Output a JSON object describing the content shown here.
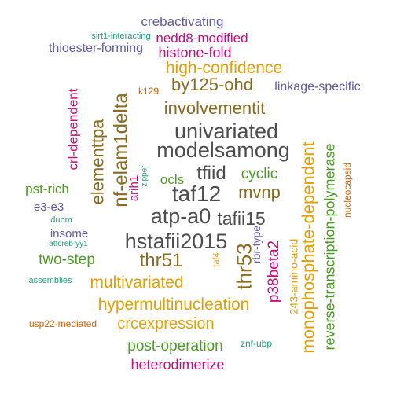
{
  "palette": {
    "slate": "#4d4d4d",
    "brown": "#8b6b1e",
    "orange": "#e69f00",
    "green": "#4b9b23",
    "magenta": "#cc0a7a",
    "purple": "#5e5aa6",
    "teal": "#1b9e77",
    "rust": "#d95f02"
  },
  "words": [
    {
      "text": "univariated",
      "color": "slate"
    },
    {
      "text": "modelsamong",
      "color": "slate"
    },
    {
      "text": "taf12",
      "color": "slate"
    },
    {
      "text": "tfiid",
      "color": "slate"
    },
    {
      "text": "atp-a0",
      "color": "slate"
    },
    {
      "text": "tafii15",
      "color": "slate"
    },
    {
      "text": "hstafii2015",
      "color": "slate"
    },
    {
      "text": "thr53",
      "color": "brown"
    },
    {
      "text": "thr51",
      "color": "brown"
    },
    {
      "text": "involvementit",
      "color": "brown"
    },
    {
      "text": "by125-ohd",
      "color": "brown"
    },
    {
      "text": "nf-elam1delta",
      "color": "brown"
    },
    {
      "text": "elementtpa",
      "color": "brown"
    },
    {
      "text": "mvnp",
      "color": "brown"
    },
    {
      "text": "monophosphate-dependent",
      "color": "orange"
    },
    {
      "text": "high-confidence",
      "color": "orange"
    },
    {
      "text": "multivariated",
      "color": "orange"
    },
    {
      "text": "hypermultinucleation",
      "color": "orange"
    },
    {
      "text": "crcexpression",
      "color": "orange"
    },
    {
      "text": "243-amino-acid",
      "color": "orange"
    },
    {
      "text": "taf4",
      "color": "orange"
    },
    {
      "text": "reverse-transcription-polymerase",
      "color": "green"
    },
    {
      "text": "cyclic",
      "color": "green"
    },
    {
      "text": "ocls",
      "color": "green"
    },
    {
      "text": "pst-rich",
      "color": "green"
    },
    {
      "text": "two-step",
      "color": "green"
    },
    {
      "text": "post-operation",
      "color": "green"
    },
    {
      "text": "p38beta2",
      "color": "magenta"
    },
    {
      "text": "nedd8-modified",
      "color": "magenta"
    },
    {
      "text": "histone-fold",
      "color": "magenta"
    },
    {
      "text": "crl-dependent",
      "color": "magenta"
    },
    {
      "text": "arih1",
      "color": "magenta"
    },
    {
      "text": "heterodimerize",
      "color": "magenta"
    },
    {
      "text": "crebactivating",
      "color": "purple"
    },
    {
      "text": "thioester-forming",
      "color": "purple"
    },
    {
      "text": "linkage-specific",
      "color": "purple"
    },
    {
      "text": "rbr-type",
      "color": "purple"
    },
    {
      "text": "e3-e3",
      "color": "purple"
    },
    {
      "text": "insome",
      "color": "purple"
    },
    {
      "text": "sirt1-interacting",
      "color": "teal"
    },
    {
      "text": "zipper",
      "color": "teal"
    },
    {
      "text": "dubm",
      "color": "teal"
    },
    {
      "text": "atfcreb-yy1",
      "color": "teal"
    },
    {
      "text": "assemblies",
      "color": "teal"
    },
    {
      "text": "znf-ubp",
      "color": "teal"
    },
    {
      "text": "k129",
      "color": "rust"
    },
    {
      "text": "nucleocapsid",
      "color": "rust"
    },
    {
      "text": "usp22-mediated",
      "color": "rust"
    }
  ]
}
